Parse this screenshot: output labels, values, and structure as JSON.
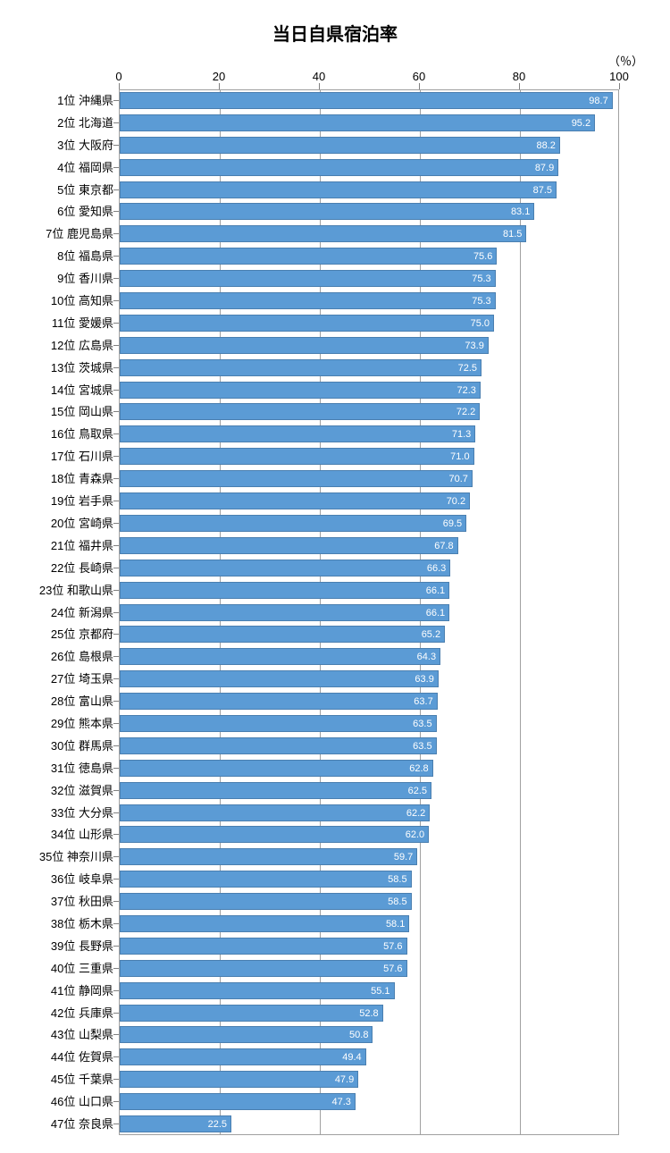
{
  "title": "当日自県宿泊率",
  "unit": "（％）",
  "chart": {
    "type": "bar-horizontal",
    "xlim": [
      0,
      100
    ],
    "xtick_step": 20,
    "xticks": [
      0,
      20,
      40,
      60,
      80,
      100
    ],
    "bar_color": "#5b9bd5",
    "bar_border_color": "#4a7fb0",
    "grid_color": "#a0a0a0",
    "value_label_color": "#ffffff",
    "background_color": "#ffffff",
    "label_fontsize": 13,
    "value_fontsize": 11,
    "title_fontsize": 20,
    "data": [
      {
        "rank": "1位",
        "name": "沖縄県",
        "value": 98.7
      },
      {
        "rank": "2位",
        "name": "北海道",
        "value": 95.2
      },
      {
        "rank": "3位",
        "name": "大阪府",
        "value": 88.2
      },
      {
        "rank": "4位",
        "name": "福岡県",
        "value": 87.9
      },
      {
        "rank": "5位",
        "name": "東京都",
        "value": 87.5
      },
      {
        "rank": "6位",
        "name": "愛知県",
        "value": 83.1
      },
      {
        "rank": "7位",
        "name": "鹿児島県",
        "value": 81.5
      },
      {
        "rank": "8位",
        "name": "福島県",
        "value": 75.6
      },
      {
        "rank": "9位",
        "name": "香川県",
        "value": 75.3
      },
      {
        "rank": "10位",
        "name": "高知県",
        "value": 75.3
      },
      {
        "rank": "11位",
        "name": "愛媛県",
        "value": 75.0
      },
      {
        "rank": "12位",
        "name": "広島県",
        "value": 73.9
      },
      {
        "rank": "13位",
        "name": "茨城県",
        "value": 72.5
      },
      {
        "rank": "14位",
        "name": "宮城県",
        "value": 72.3
      },
      {
        "rank": "15位",
        "name": "岡山県",
        "value": 72.2
      },
      {
        "rank": "16位",
        "name": "鳥取県",
        "value": 71.3
      },
      {
        "rank": "17位",
        "name": "石川県",
        "value": 71.0
      },
      {
        "rank": "18位",
        "name": "青森県",
        "value": 70.7
      },
      {
        "rank": "19位",
        "name": "岩手県",
        "value": 70.2
      },
      {
        "rank": "20位",
        "name": "宮崎県",
        "value": 69.5
      },
      {
        "rank": "21位",
        "name": "福井県",
        "value": 67.8
      },
      {
        "rank": "22位",
        "name": "長崎県",
        "value": 66.3
      },
      {
        "rank": "23位",
        "name": "和歌山県",
        "value": 66.1
      },
      {
        "rank": "24位",
        "name": "新潟県",
        "value": 66.1
      },
      {
        "rank": "25位",
        "name": "京都府",
        "value": 65.2
      },
      {
        "rank": "26位",
        "name": "島根県",
        "value": 64.3
      },
      {
        "rank": "27位",
        "name": "埼玉県",
        "value": 63.9
      },
      {
        "rank": "28位",
        "name": "富山県",
        "value": 63.7
      },
      {
        "rank": "29位",
        "name": "熊本県",
        "value": 63.5
      },
      {
        "rank": "30位",
        "name": "群馬県",
        "value": 63.5
      },
      {
        "rank": "31位",
        "name": "徳島県",
        "value": 62.8
      },
      {
        "rank": "32位",
        "name": "滋賀県",
        "value": 62.5
      },
      {
        "rank": "33位",
        "name": "大分県",
        "value": 62.2
      },
      {
        "rank": "34位",
        "name": "山形県",
        "value": 62.0
      },
      {
        "rank": "35位",
        "name": "神奈川県",
        "value": 59.7
      },
      {
        "rank": "36位",
        "name": "岐阜県",
        "value": 58.5
      },
      {
        "rank": "37位",
        "name": "秋田県",
        "value": 58.5
      },
      {
        "rank": "38位",
        "name": "栃木県",
        "value": 58.1
      },
      {
        "rank": "39位",
        "name": "長野県",
        "value": 57.6
      },
      {
        "rank": "40位",
        "name": "三重県",
        "value": 57.6
      },
      {
        "rank": "41位",
        "name": "静岡県",
        "value": 55.1
      },
      {
        "rank": "42位",
        "name": "兵庫県",
        "value": 52.8
      },
      {
        "rank": "43位",
        "name": "山梨県",
        "value": 50.8
      },
      {
        "rank": "44位",
        "name": "佐賀県",
        "value": 49.4
      },
      {
        "rank": "45位",
        "name": "千葉県",
        "value": 47.9
      },
      {
        "rank": "46位",
        "name": "山口県",
        "value": 47.3
      },
      {
        "rank": "47位",
        "name": "奈良県",
        "value": 22.5
      }
    ]
  }
}
